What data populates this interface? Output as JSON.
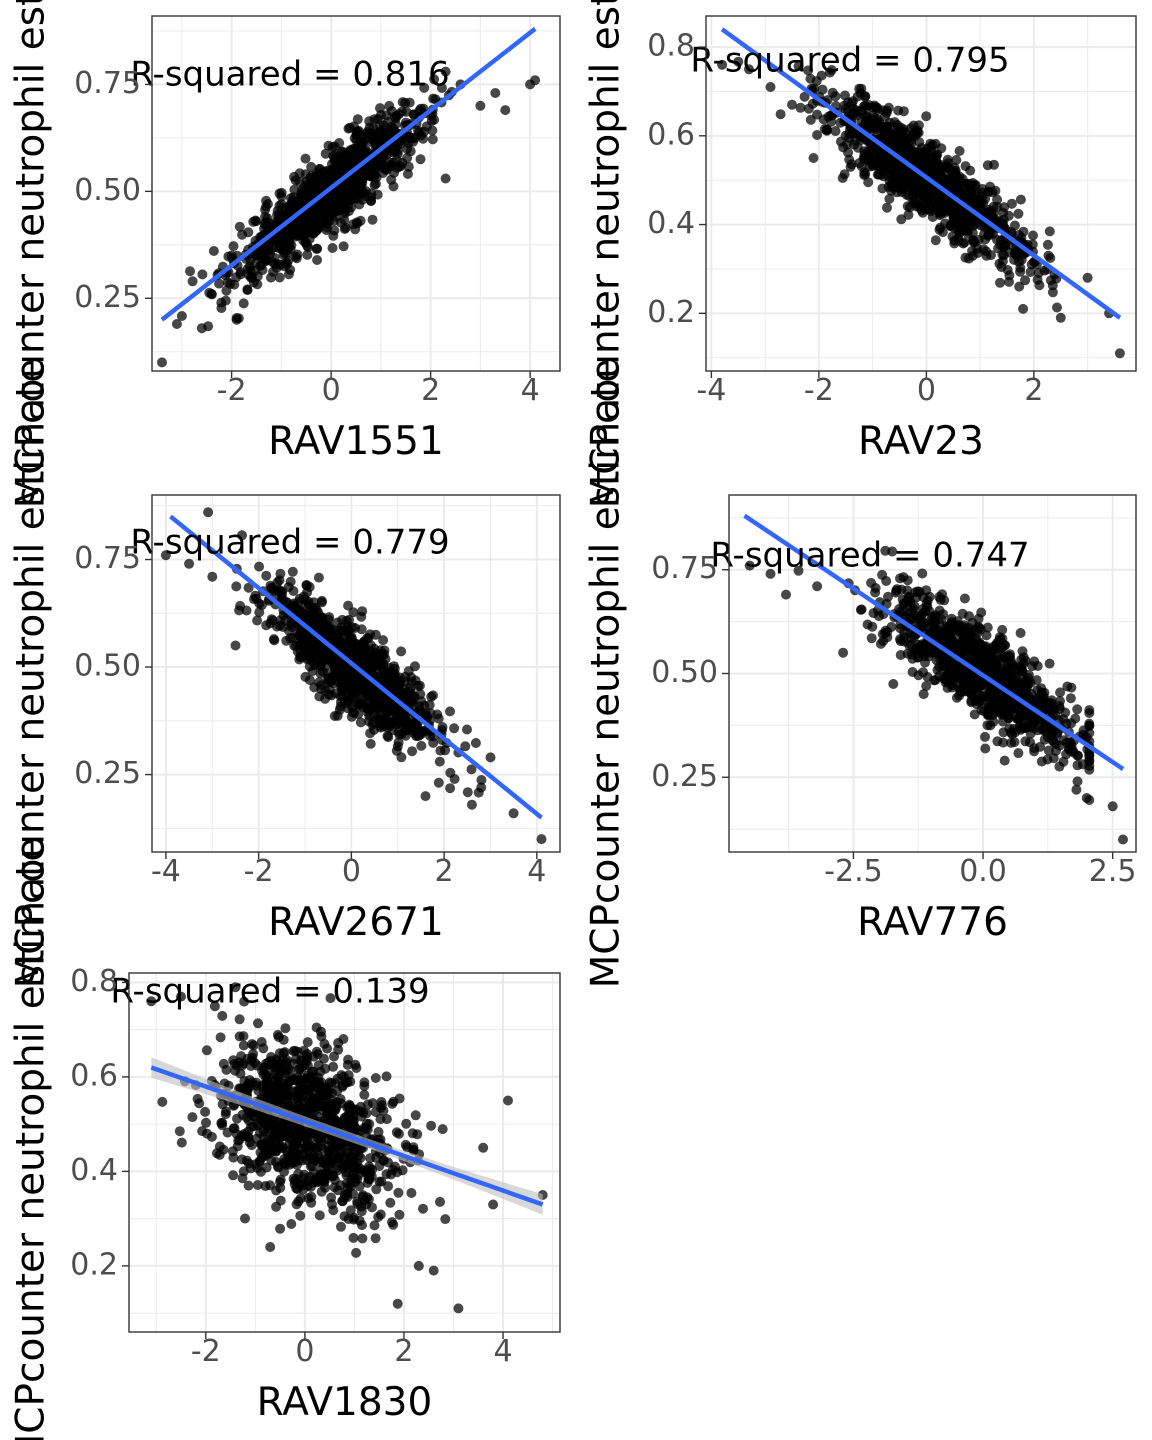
{
  "chart_data": [
    {
      "type": "scatter",
      "xlabel": "RAV1551",
      "ylabel": "MCPcounter neutrophil estimate",
      "annotation": "R-squared = 0.816",
      "xlim": [
        -3.6,
        4.6
      ],
      "ylim": [
        0.08,
        0.91
      ],
      "xticks": [
        -2,
        0,
        2,
        4
      ],
      "xtick_labels": [
        "-2",
        "0",
        "2",
        "4"
      ],
      "yticks": [
        0.25,
        0.5,
        0.75
      ],
      "ytick_labels": [
        "0.25",
        "0.50",
        "0.75"
      ],
      "slope": 0.0905,
      "intercept": 0.5,
      "noise": 0.045,
      "fit_line": {
        "x": [
          -3.4,
          4.1
        ],
        "y": [
          0.2,
          0.88
        ]
      },
      "ci_band": 0.006,
      "points": [
        [
          -3.4,
          0.1
        ],
        [
          -3.1,
          0.19
        ],
        [
          -2.6,
          0.18
        ],
        [
          -2.4,
          0.26
        ],
        [
          -1.9,
          0.2
        ],
        [
          4.1,
          0.76
        ],
        [
          4.0,
          0.75
        ],
        [
          2.3,
          0.53
        ],
        [
          2.3,
          0.78
        ],
        [
          3.0,
          0.7
        ],
        [
          2.6,
          0.75
        ],
        [
          3.3,
          0.73
        ],
        [
          3.5,
          0.69
        ],
        [
          -2.0,
          0.35
        ]
      ],
      "point_count": 1000,
      "grid": true,
      "colors": {
        "points": "#000000",
        "line": "#3366FF",
        "band": "#BEBEBE"
      }
    },
    {
      "type": "scatter",
      "xlabel": "RAV23",
      "ylabel": "MCPcounter neutrophil estimate",
      "annotation": "R-squared = 0.795",
      "xlim": [
        -4.1,
        3.9
      ],
      "ylim": [
        0.07,
        0.87
      ],
      "xticks": [
        -4,
        -2,
        0,
        2
      ],
      "xtick_labels": [
        "-4",
        "-2",
        "0",
        "2"
      ],
      "yticks": [
        0.2,
        0.4,
        0.6,
        0.8
      ],
      "ytick_labels": [
        "0.2",
        "0.4",
        "0.6",
        "0.8"
      ],
      "slope": -0.088,
      "intercept": 0.5,
      "noise": 0.045,
      "fit_line": {
        "x": [
          -3.8,
          3.6
        ],
        "y": [
          0.84,
          0.19
        ]
      },
      "ci_band": 0.006,
      "points": [
        [
          -3.8,
          0.76
        ],
        [
          -3.3,
          0.75
        ],
        [
          -2.9,
          0.71
        ],
        [
          -2.1,
          0.55
        ],
        [
          3.6,
          0.11
        ],
        [
          3.4,
          0.2
        ],
        [
          2.5,
          0.19
        ],
        [
          1.8,
          0.21
        ],
        [
          3.0,
          0.28
        ],
        [
          -2.5,
          0.67
        ]
      ],
      "point_count": 1000,
      "grid": true,
      "colors": {
        "points": "#000000",
        "line": "#3366FF",
        "band": "#BEBEBE"
      }
    },
    {
      "type": "scatter",
      "xlabel": "RAV2671",
      "ylabel": "MCPcounter neutrophil estimate",
      "annotation": "R-squared = 0.779",
      "xlim": [
        -4.3,
        4.5
      ],
      "ylim": [
        0.07,
        0.9
      ],
      "xticks": [
        -4,
        -2,
        0,
        2,
        4
      ],
      "xtick_labels": [
        "-4",
        "-2",
        "0",
        "2",
        "4"
      ],
      "yticks": [
        0.25,
        0.5,
        0.75
      ],
      "ytick_labels": [
        "0.25",
        "0.50",
        "0.75"
      ],
      "slope": -0.088,
      "intercept": 0.5,
      "noise": 0.05,
      "fit_line": {
        "x": [
          -3.9,
          4.1
        ],
        "y": [
          0.85,
          0.15
        ]
      },
      "ci_band": 0.006,
      "points": [
        [
          -4.0,
          0.76
        ],
        [
          -3.5,
          0.74
        ],
        [
          -2.5,
          0.55
        ],
        [
          4.1,
          0.1
        ],
        [
          3.5,
          0.16
        ],
        [
          2.6,
          0.18
        ],
        [
          1.6,
          0.2
        ],
        [
          2.8,
          0.22
        ],
        [
          3.0,
          0.29
        ],
        [
          -3.0,
          0.71
        ]
      ],
      "point_count": 1000,
      "grid": true,
      "colors": {
        "points": "#000000",
        "line": "#3366FF",
        "band": "#BEBEBE"
      }
    },
    {
      "type": "scatter",
      "xlabel": "RAV776",
      "ylabel": "MCPcounter neutrophil estimate",
      "annotation": "R-squared = 0.747",
      "xlim": [
        -4.9,
        2.95
      ],
      "ylim": [
        0.07,
        0.93
      ],
      "xticks": [
        -2.5,
        0.0,
        2.5
      ],
      "xtick_labels": [
        "-2.5",
        "0.0",
        "2.5"
      ],
      "yticks": [
        0.25,
        0.5,
        0.75
      ],
      "ytick_labels": [
        "0.25",
        "0.50",
        "0.75"
      ],
      "slope": -0.0845,
      "intercept": 0.5,
      "noise": 0.055,
      "fit_line": {
        "x": [
          -4.6,
          2.7
        ],
        "y": [
          0.88,
          0.27
        ]
      },
      "ci_band": 0.006,
      "points": [
        [
          -4.5,
          0.76
        ],
        [
          -4.1,
          0.74
        ],
        [
          -3.8,
          0.69
        ],
        [
          -2.7,
          0.55
        ],
        [
          2.7,
          0.1
        ],
        [
          2.5,
          0.18
        ],
        [
          2.0,
          0.2
        ],
        [
          1.8,
          0.22
        ],
        [
          -3.2,
          0.71
        ]
      ],
      "point_count": 1000,
      "grid": true,
      "colors": {
        "points": "#000000",
        "line": "#3366FF",
        "band": "#BEBEBE"
      }
    },
    {
      "type": "scatter",
      "xlabel": "RAV1830",
      "ylabel": "MCPcounter neutrophil estimate",
      "annotation": "R-squared = 0.139",
      "xlim": [
        -3.55,
        5.15
      ],
      "ylim": [
        0.06,
        0.82
      ],
      "xticks": [
        -2,
        0,
        2,
        4
      ],
      "xtick_labels": [
        "-2",
        "0",
        "2",
        "4"
      ],
      "yticks": [
        0.2,
        0.4,
        0.6,
        0.8
      ],
      "ytick_labels": [
        "0.2",
        "0.4",
        "0.6",
        "0.8"
      ],
      "slope": -0.036,
      "intercept": 0.5,
      "noise": 0.085,
      "fit_line": {
        "x": [
          -3.1,
          4.8
        ],
        "y": [
          0.62,
          0.33
        ]
      },
      "ci_band": 0.022,
      "points": [
        [
          -3.1,
          0.76
        ],
        [
          -2.5,
          0.77
        ],
        [
          -1.4,
          0.79
        ],
        [
          4.8,
          0.35
        ],
        [
          4.1,
          0.55
        ],
        [
          3.1,
          0.11
        ],
        [
          2.6,
          0.19
        ],
        [
          2.3,
          0.2
        ],
        [
          3.6,
          0.45
        ],
        [
          3.8,
          0.33
        ],
        [
          -0.7,
          0.24
        ]
      ],
      "point_count": 1000,
      "grid": true,
      "colors": {
        "points": "#000000",
        "line": "#3366FF",
        "band": "#BEBEBE"
      }
    }
  ]
}
